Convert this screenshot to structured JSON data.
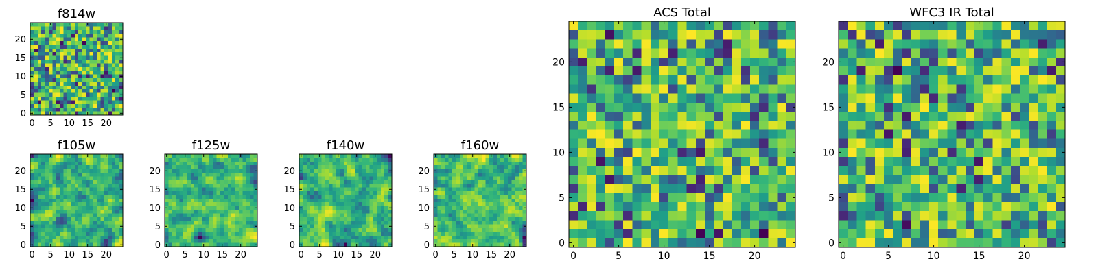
{
  "chart_data": [
    {
      "id": "f814w",
      "type": "heatmap",
      "title": "f814w",
      "grid_size": 25,
      "xlim": [
        0,
        24
      ],
      "ylim": [
        0,
        24
      ],
      "xticks": [
        0,
        5,
        10,
        15,
        20
      ],
      "yticks": [
        0,
        5,
        10,
        15,
        20
      ],
      "seed": 11,
      "smooth": 0,
      "colormap": "viridis",
      "note": "pixel values are random noise (not individually readable)"
    },
    {
      "id": "f105w",
      "type": "heatmap",
      "title": "f105w",
      "grid_size": 25,
      "xlim": [
        0,
        24
      ],
      "ylim": [
        0,
        24
      ],
      "xticks": [
        0,
        5,
        10,
        15,
        20
      ],
      "yticks": [
        0,
        5,
        10,
        15,
        20
      ],
      "seed": 23,
      "smooth": 1,
      "colormap": "viridis",
      "note": "pixel values are random noise (not individually readable)"
    },
    {
      "id": "f125w",
      "type": "heatmap",
      "title": "f125w",
      "grid_size": 25,
      "xlim": [
        0,
        24
      ],
      "ylim": [
        0,
        24
      ],
      "xticks": [
        0,
        5,
        10,
        15,
        20
      ],
      "yticks": [
        0,
        5,
        10,
        15,
        20
      ],
      "seed": 37,
      "smooth": 1,
      "colormap": "viridis",
      "note": "pixel values are random noise (not individually readable)"
    },
    {
      "id": "f140w",
      "type": "heatmap",
      "title": "f140w",
      "grid_size": 25,
      "xlim": [
        0,
        24
      ],
      "ylim": [
        0,
        24
      ],
      "xticks": [
        0,
        5,
        10,
        15,
        20
      ],
      "yticks": [
        0,
        5,
        10,
        15,
        20
      ],
      "seed": 41,
      "smooth": 1,
      "colormap": "viridis",
      "note": "pixel values are random noise (not individually readable)"
    },
    {
      "id": "f160w",
      "type": "heatmap",
      "title": "f160w",
      "grid_size": 25,
      "xlim": [
        0,
        24
      ],
      "ylim": [
        0,
        24
      ],
      "xticks": [
        0,
        5,
        10,
        15,
        20
      ],
      "yticks": [
        0,
        5,
        10,
        15,
        20
      ],
      "seed": 53,
      "smooth": 1,
      "colormap": "viridis",
      "note": "pixel values are random noise (not individually readable)"
    },
    {
      "id": "acs-total",
      "type": "heatmap",
      "title": "ACS Total",
      "grid_size": 25,
      "xlim": [
        0,
        24
      ],
      "ylim": [
        0,
        24
      ],
      "xticks": [
        0,
        5,
        10,
        15,
        20
      ],
      "yticks": [
        0,
        5,
        10,
        15,
        20
      ],
      "seed": 67,
      "smooth": 0,
      "colormap": "viridis",
      "note": "pixel values are random noise (not individually readable)"
    },
    {
      "id": "wfc3-ir-total",
      "type": "heatmap",
      "title": "WFC3 IR Total",
      "grid_size": 25,
      "xlim": [
        0,
        24
      ],
      "ylim": [
        0,
        24
      ],
      "xticks": [
        0,
        5,
        10,
        15,
        20
      ],
      "yticks": [
        0,
        5,
        10,
        15,
        20
      ],
      "seed": 79,
      "smooth": 0,
      "colormap": "viridis",
      "note": "pixel values are random noise (not individually readable)"
    }
  ]
}
